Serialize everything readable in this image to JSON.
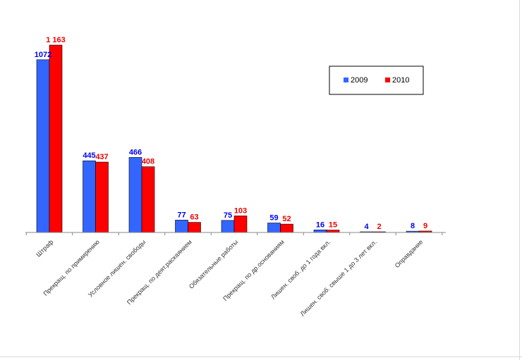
{
  "chart_data": {
    "type": "bar",
    "categories": [
      "Штраф",
      "Прекращ. по примирению",
      "Условное лишен. свободы",
      "Прекращ. по деят.раскаянием",
      "Обязательные работы",
      "Прекращ. по др.основаниям",
      "Лишен. своб. до 1 года вкл.",
      "Лишен. своб. свыше 1 до 3 лет вкл.",
      "Оправдание"
    ],
    "series": [
      {
        "name": "2009",
        "color": "#3366ff",
        "values": [
          1072,
          445,
          466,
          77,
          75,
          59,
          16,
          4,
          8
        ],
        "labels": [
          "1072",
          "445",
          "466",
          "77",
          "75",
          "59",
          "16",
          "4",
          "8"
        ]
      },
      {
        "name": "2010",
        "color": "#ff0000",
        "values": [
          1163,
          437,
          408,
          63,
          103,
          52,
          15,
          2,
          9
        ],
        "labels": [
          "1 163",
          "437",
          "408",
          "63",
          "103",
          "52",
          "15",
          "2",
          "9"
        ]
      }
    ],
    "ylim": [
      0,
      1163
    ],
    "grid": false,
    "legend_position": "top-right"
  }
}
